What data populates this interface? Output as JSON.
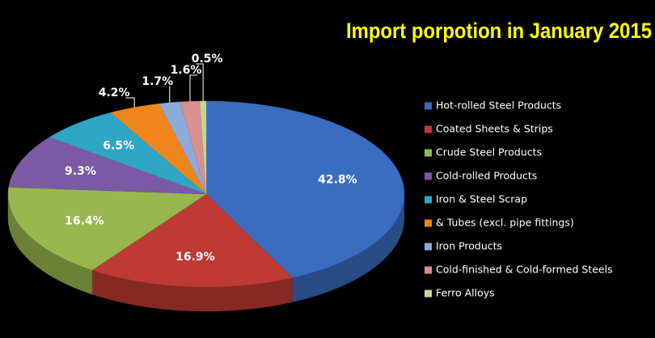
{
  "chart_data": {
    "type": "pie3d",
    "title": "Import porpotion in January 2015",
    "categories": [
      "Hot-rolled Steel Products",
      "Coated Sheets & Strips",
      "Crude Steel Products",
      "Cold-rolled Products",
      "Iron & Steel Scrap",
      "& Tubes (excl. pipe fittings)",
      "Iron Products",
      "Cold-finished & Cold-formed Steels",
      "Ferro Alloys"
    ],
    "values": [
      42.8,
      16.9,
      16.4,
      9.3,
      6.5,
      4.2,
      1.7,
      1.6,
      0.5
    ],
    "value_labels": [
      "42.8%",
      "16.9%",
      "16.4%",
      "9.3%",
      "6.5%",
      "4.2%",
      "1.7%",
      "1.6%",
      "0.5%"
    ],
    "colors": [
      "#3a6cc0",
      "#bf3a35",
      "#97b84f",
      "#7b5aa3",
      "#2fa6c4",
      "#ef861c",
      "#8eaadb",
      "#d98f8d",
      "#c4d79b"
    ],
    "legend": "right"
  }
}
